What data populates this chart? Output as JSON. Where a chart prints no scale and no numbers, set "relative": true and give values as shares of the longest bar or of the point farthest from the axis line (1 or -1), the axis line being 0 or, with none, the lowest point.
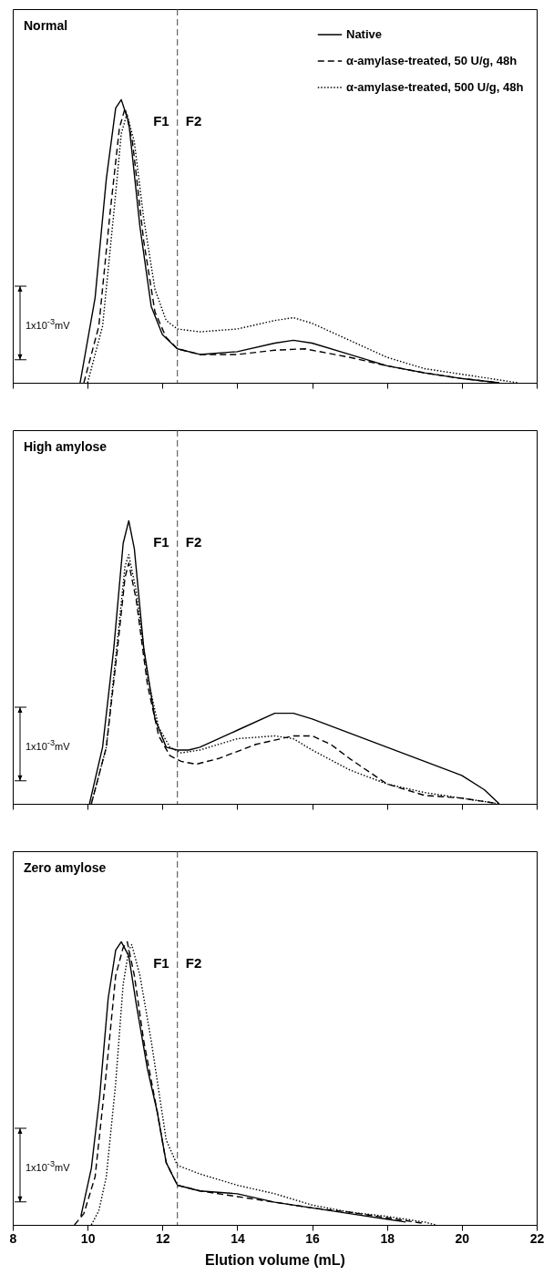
{
  "chart_data": [
    {
      "type": "line",
      "title": "Normal",
      "relative": true,
      "xlim": [
        8,
        22
      ],
      "xticks": [
        8,
        10,
        12,
        14,
        16,
        18,
        20,
        22
      ],
      "tick_labels": false,
      "legend": "top right",
      "ref_lines": [
        {
          "axis": "x",
          "value": 12.4,
          "line_style": "dashed",
          "color": "#444444"
        }
      ],
      "annotations": [
        "F1",
        "F2",
        "1x10$^{-3}$mV"
      ],
      "series": [
        {
          "name": "Native",
          "color": "#000000",
          "line_style": "solid",
          "x": [
            9.8,
            10.2,
            10.5,
            10.75,
            10.9,
            11.1,
            11.4,
            11.7,
            12.0,
            12.4,
            13,
            14,
            15,
            15.5,
            16,
            17,
            18,
            19,
            20,
            21
          ],
          "values": [
            0,
            0.3,
            0.72,
            0.97,
            1,
            0.92,
            0.55,
            0.27,
            0.17,
            0.12,
            0.1,
            0.11,
            0.14,
            0.15,
            0.14,
            0.1,
            0.06,
            0.035,
            0.015,
            0
          ]
        },
        {
          "name": "α-amylase-treated, 50 U/g, 48h",
          "color": "#000000",
          "line_style": "dashed",
          "x": [
            9.9,
            10.3,
            10.6,
            10.85,
            11.0,
            11.2,
            11.5,
            11.8,
            12.1,
            12.4,
            13,
            14,
            15,
            15.8,
            17,
            18,
            19,
            20,
            21
          ],
          "values": [
            0,
            0.2,
            0.6,
            0.9,
            0.97,
            0.85,
            0.5,
            0.25,
            0.16,
            0.12,
            0.1,
            0.1,
            0.115,
            0.12,
            0.09,
            0.06,
            0.035,
            0.015,
            0
          ]
        },
        {
          "name": "α-amylase-treated, 500 U/g, 48h",
          "color": "#000000",
          "line_style": "dotted",
          "x": [
            10.0,
            10.4,
            10.7,
            10.9,
            11.05,
            11.25,
            11.5,
            11.8,
            12.1,
            12.4,
            13,
            14,
            15,
            15.5,
            16,
            17,
            18,
            19,
            20,
            21,
            21.5
          ],
          "values": [
            0,
            0.2,
            0.6,
            0.88,
            0.95,
            0.85,
            0.58,
            0.33,
            0.22,
            0.19,
            0.18,
            0.19,
            0.22,
            0.23,
            0.21,
            0.15,
            0.09,
            0.05,
            0.03,
            0.01,
            0
          ]
        }
      ]
    },
    {
      "type": "line",
      "title": "High amylose",
      "relative": true,
      "xlim": [
        8,
        22
      ],
      "xticks": [
        8,
        10,
        12,
        14,
        16,
        18,
        20,
        22
      ],
      "tick_labels": false,
      "ref_lines": [
        {
          "axis": "x",
          "value": 12.4,
          "line_style": "dashed",
          "color": "#444444"
        }
      ],
      "annotations": [
        "F1",
        "F2",
        "1x10$^{-3}$mV"
      ],
      "series": [
        {
          "color": "#000000",
          "line_style": "solid",
          "x": [
            10.05,
            10.4,
            10.7,
            10.95,
            11.1,
            11.25,
            11.5,
            11.8,
            12.1,
            12.4,
            12.7,
            13,
            14,
            15,
            15.5,
            16,
            17,
            18,
            19,
            20,
            20.6,
            21
          ],
          "values": [
            0,
            0.2,
            0.55,
            0.92,
            1,
            0.9,
            0.55,
            0.3,
            0.2,
            0.19,
            0.19,
            0.2,
            0.26,
            0.32,
            0.32,
            0.3,
            0.25,
            0.2,
            0.15,
            0.1,
            0.05,
            0
          ]
        },
        {
          "color": "#000000",
          "line_style": "dashed",
          "x": [
            10.1,
            10.5,
            10.8,
            11.0,
            11.1,
            11.3,
            11.6,
            11.9,
            12.2,
            12.5,
            12.9,
            13.5,
            14.5,
            15.5,
            16,
            16.5,
            17,
            18,
            19,
            20,
            21
          ],
          "values": [
            0,
            0.2,
            0.55,
            0.8,
            0.85,
            0.72,
            0.42,
            0.24,
            0.17,
            0.15,
            0.14,
            0.16,
            0.21,
            0.24,
            0.24,
            0.21,
            0.16,
            0.07,
            0.03,
            0.02,
            0
          ]
        },
        {
          "color": "#000000",
          "line_style": "dotted",
          "x": [
            10.1,
            10.5,
            10.8,
            11.0,
            11.1,
            11.3,
            11.6,
            11.9,
            12.2,
            12.5,
            13,
            14,
            15,
            15.5,
            16,
            17,
            18,
            19,
            20,
            21
          ],
          "values": [
            0,
            0.2,
            0.58,
            0.84,
            0.88,
            0.75,
            0.45,
            0.27,
            0.2,
            0.18,
            0.19,
            0.23,
            0.24,
            0.23,
            0.19,
            0.12,
            0.07,
            0.04,
            0.02,
            0
          ]
        }
      ]
    },
    {
      "type": "line",
      "title": "Zero amylose",
      "relative": true,
      "xlabel": "Elution volume (mL)",
      "xlim": [
        8,
        22
      ],
      "xticks": [
        8,
        10,
        12,
        14,
        16,
        18,
        20,
        22
      ],
      "tick_labels": "x",
      "ref_lines": [
        {
          "axis": "x",
          "value": 12.4,
          "line_style": "dashed",
          "color": "#444444"
        }
      ],
      "annotations": [
        "F1",
        "F2",
        "1x10$^{-3}$mV"
      ],
      "series": [
        {
          "color": "#000000",
          "line_style": "solid",
          "x": [
            9.82,
            10.1,
            10.32,
            10.55,
            10.75,
            10.9,
            11.1,
            11.3,
            11.6,
            11.86,
            12.1,
            12.4,
            13,
            14,
            15,
            16,
            17,
            18,
            18.5
          ],
          "values": [
            0.03,
            0.2,
            0.45,
            0.8,
            0.97,
            1,
            0.95,
            0.78,
            0.55,
            0.4,
            0.22,
            0.14,
            0.12,
            0.11,
            0.08,
            0.06,
            0.04,
            0.02,
            0.01
          ]
        },
        {
          "color": "#000000",
          "line_style": "dashed",
          "x": [
            9.65,
            9.9,
            10.2,
            10.5,
            10.75,
            10.95,
            11.06,
            11.25,
            11.5,
            11.86,
            12.1,
            12.4,
            13,
            14,
            15,
            16,
            17,
            18,
            19
          ],
          "values": [
            0,
            0.04,
            0.17,
            0.54,
            0.88,
            0.98,
            1,
            0.88,
            0.65,
            0.4,
            0.22,
            0.14,
            0.12,
            0.1,
            0.08,
            0.06,
            0.045,
            0.025,
            0.005
          ]
        },
        {
          "color": "#000000",
          "line_style": "dotted",
          "x": [
            10.1,
            10.3,
            10.5,
            10.75,
            10.95,
            11.1,
            11.18,
            11.4,
            11.7,
            11.86,
            12.1,
            12.4,
            13,
            14,
            15,
            16,
            17,
            18,
            19,
            19.3
          ],
          "values": [
            0,
            0.05,
            0.17,
            0.5,
            0.85,
            0.97,
            0.99,
            0.88,
            0.65,
            0.51,
            0.3,
            0.21,
            0.18,
            0.14,
            0.11,
            0.07,
            0.045,
            0.03,
            0.01,
            0
          ]
        }
      ]
    }
  ]
}
